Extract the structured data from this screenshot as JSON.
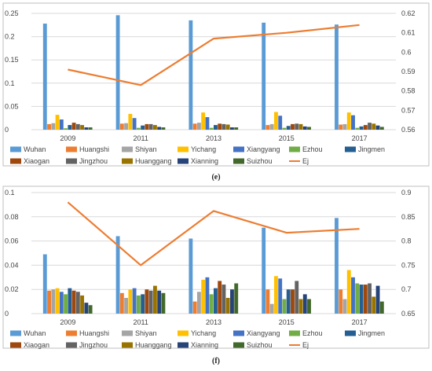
{
  "chart_data": [
    {
      "type": "bar",
      "panel_label": "(e)",
      "categories": [
        "2009",
        "2011",
        "2013",
        "2015",
        "2017"
      ],
      "ylim": [
        0,
        0.25
      ],
      "yticks": [
        "0",
        "0.05",
        "0.1",
        "0.15",
        "0.2",
        "0.25"
      ],
      "y2lim": [
        0.56,
        0.62
      ],
      "y2ticks": [
        "0.56",
        "0.57",
        "0.58",
        "0.59",
        "0.6",
        "0.61",
        "0.62"
      ],
      "series": [
        {
          "name": "Wuhan",
          "color": "#5B9BD5",
          "values": [
            0.228,
            0.246,
            0.235,
            0.23,
            0.226
          ]
        },
        {
          "name": "Huangshi",
          "color": "#ED7D31",
          "values": [
            0.012,
            0.013,
            0.013,
            0.01,
            0.011
          ]
        },
        {
          "name": "Shiyan",
          "color": "#A5A5A5",
          "values": [
            0.014,
            0.014,
            0.015,
            0.012,
            0.012
          ]
        },
        {
          "name": "Yichang",
          "color": "#FFC000",
          "values": [
            0.032,
            0.034,
            0.037,
            0.038,
            0.037
          ]
        },
        {
          "name": "Xiangyang",
          "color": "#4472C4",
          "values": [
            0.022,
            0.025,
            0.027,
            0.03,
            0.031
          ]
        },
        {
          "name": "Ezhou",
          "color": "#70AD47",
          "values": [
            0.003,
            0.004,
            0.004,
            0.004,
            0.004
          ]
        },
        {
          "name": "Jingmen",
          "color": "#255E91",
          "values": [
            0.01,
            0.009,
            0.01,
            0.008,
            0.007
          ]
        },
        {
          "name": "Xiaogan",
          "color": "#9E480E",
          "values": [
            0.015,
            0.012,
            0.013,
            0.012,
            0.01
          ]
        },
        {
          "name": "Jingzhou",
          "color": "#636363",
          "values": [
            0.012,
            0.012,
            0.012,
            0.013,
            0.015
          ]
        },
        {
          "name": "Huanggang",
          "color": "#997300",
          "values": [
            0.01,
            0.01,
            0.011,
            0.012,
            0.013
          ]
        },
        {
          "name": "Xianning",
          "color": "#264478",
          "values": [
            0.005,
            0.006,
            0.005,
            0.007,
            0.009
          ]
        },
        {
          "name": "Suizhou",
          "color": "#43682B",
          "values": [
            0.005,
            0.005,
            0.005,
            0.006,
            0.006
          ]
        }
      ],
      "line_series": {
        "name": "Ej",
        "color": "#ED7D31",
        "axis": "right",
        "values": [
          0.591,
          0.583,
          0.607,
          0.61,
          0.614
        ]
      }
    },
    {
      "type": "bar",
      "panel_label": "(f)",
      "categories": [
        "2009",
        "2011",
        "2013",
        "2015",
        "2017"
      ],
      "ylim": [
        0,
        0.1
      ],
      "yticks": [
        "0",
        "0.02",
        "0.04",
        "0.06",
        "0.08",
        "0.1"
      ],
      "y2lim": [
        0.65,
        0.9
      ],
      "y2ticks": [
        "0.65",
        "0.7",
        "0.75",
        "0.8",
        "0.85",
        "0.9"
      ],
      "series": [
        {
          "name": "Wuhan",
          "color": "#5B9BD5",
          "values": [
            0.049,
            0.064,
            0.062,
            0.071,
            0.079
          ]
        },
        {
          "name": "Huangshi",
          "color": "#ED7D31",
          "values": [
            0.019,
            0.017,
            0.01,
            0.02,
            0.02
          ]
        },
        {
          "name": "Shiyan",
          "color": "#A5A5A5",
          "values": [
            0.02,
            0.013,
            0.018,
            0.008,
            0.012
          ]
        },
        {
          "name": "Yichang",
          "color": "#FFC000",
          "values": [
            0.021,
            0.02,
            0.028,
            0.031,
            0.036
          ]
        },
        {
          "name": "Xiangyang",
          "color": "#4472C4",
          "values": [
            0.018,
            0.021,
            0.03,
            0.029,
            0.03
          ]
        },
        {
          "name": "Ezhou",
          "color": "#70AD47",
          "values": [
            0.016,
            0.015,
            0.016,
            0.012,
            0.025
          ]
        },
        {
          "name": "Jingmen",
          "color": "#255E91",
          "values": [
            0.021,
            0.016,
            0.021,
            0.02,
            0.024
          ]
        },
        {
          "name": "Xiaogan",
          "color": "#9E480E",
          "values": [
            0.019,
            0.02,
            0.027,
            0.02,
            0.024
          ]
        },
        {
          "name": "Jingzhou",
          "color": "#636363",
          "values": [
            0.018,
            0.019,
            0.024,
            0.027,
            0.025
          ]
        },
        {
          "name": "Huanggang",
          "color": "#997300",
          "values": [
            0.015,
            0.023,
            0.013,
            0.012,
            0.014
          ]
        },
        {
          "name": "Xianning",
          "color": "#264478",
          "values": [
            0.009,
            0.019,
            0.02,
            0.016,
            0.023
          ]
        },
        {
          "name": "Suizhou",
          "color": "#43682B",
          "values": [
            0.007,
            0.017,
            0.025,
            0.012,
            0.01
          ]
        }
      ],
      "line_series": {
        "name": "Ej",
        "color": "#ED7D31",
        "axis": "right",
        "values": [
          0.88,
          0.75,
          0.862,
          0.817,
          0.825
        ]
      }
    }
  ]
}
